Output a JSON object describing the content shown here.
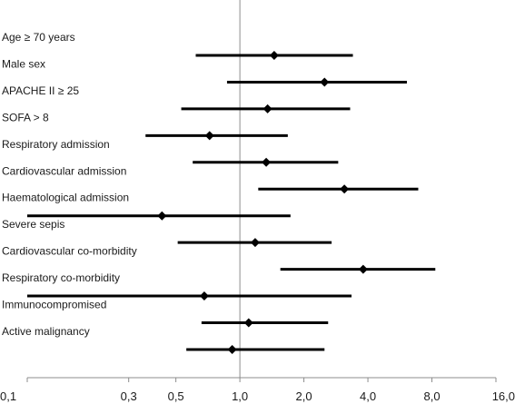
{
  "chart_data": {
    "type": "forest",
    "x_scale": "log",
    "ticks": [
      {
        "value": 0.1,
        "label": "0,1"
      },
      {
        "value": 0.3,
        "label": "0,3"
      },
      {
        "value": 0.5,
        "label": "0,5"
      },
      {
        "value": 1.0,
        "label": "1,0"
      },
      {
        "value": 2.0,
        "label": "2,0"
      },
      {
        "value": 4.0,
        "label": "4,0"
      },
      {
        "value": 8.0,
        "label": "8,0"
      },
      {
        "value": 16.0,
        "label": "16,0"
      }
    ],
    "reference_value": 1.0,
    "rows": [
      {
        "label": "Age ≥ 70 years",
        "estimate": 1.45,
        "lower": 0.62,
        "upper": 3.4
      },
      {
        "label": "Male sex",
        "estimate": 2.5,
        "lower": 0.87,
        "upper": 6.1
      },
      {
        "label": "APACHE II ≥ 25",
        "estimate": 1.35,
        "lower": 0.53,
        "upper": 3.3
      },
      {
        "label": "SOFA > 8",
        "estimate": 0.72,
        "lower": 0.36,
        "upper": 1.68
      },
      {
        "label": "Respiratory admission",
        "estimate": 1.33,
        "lower": 0.6,
        "upper": 2.9
      },
      {
        "label": "Cardiovascular admission",
        "estimate": 3.1,
        "lower": 1.22,
        "upper": 6.9
      },
      {
        "label": "Haematological admission",
        "estimate": 0.43,
        "lower": 0.1,
        "upper": 1.73
      },
      {
        "label": "Severe sepis",
        "estimate": 1.18,
        "lower": 0.51,
        "upper": 2.7
      },
      {
        "label": "Cardiovascular co-morbidity",
        "estimate": 3.8,
        "lower": 1.55,
        "upper": 8.3
      },
      {
        "label": "Respiratory co-morbidity",
        "estimate": 0.68,
        "lower": 0.1,
        "upper": 3.35
      },
      {
        "label": "Immunocompromised",
        "estimate": 1.1,
        "lower": 0.66,
        "upper": 2.6
      },
      {
        "label": "Active malignancy",
        "estimate": 0.92,
        "lower": 0.56,
        "upper": 2.5
      }
    ]
  }
}
